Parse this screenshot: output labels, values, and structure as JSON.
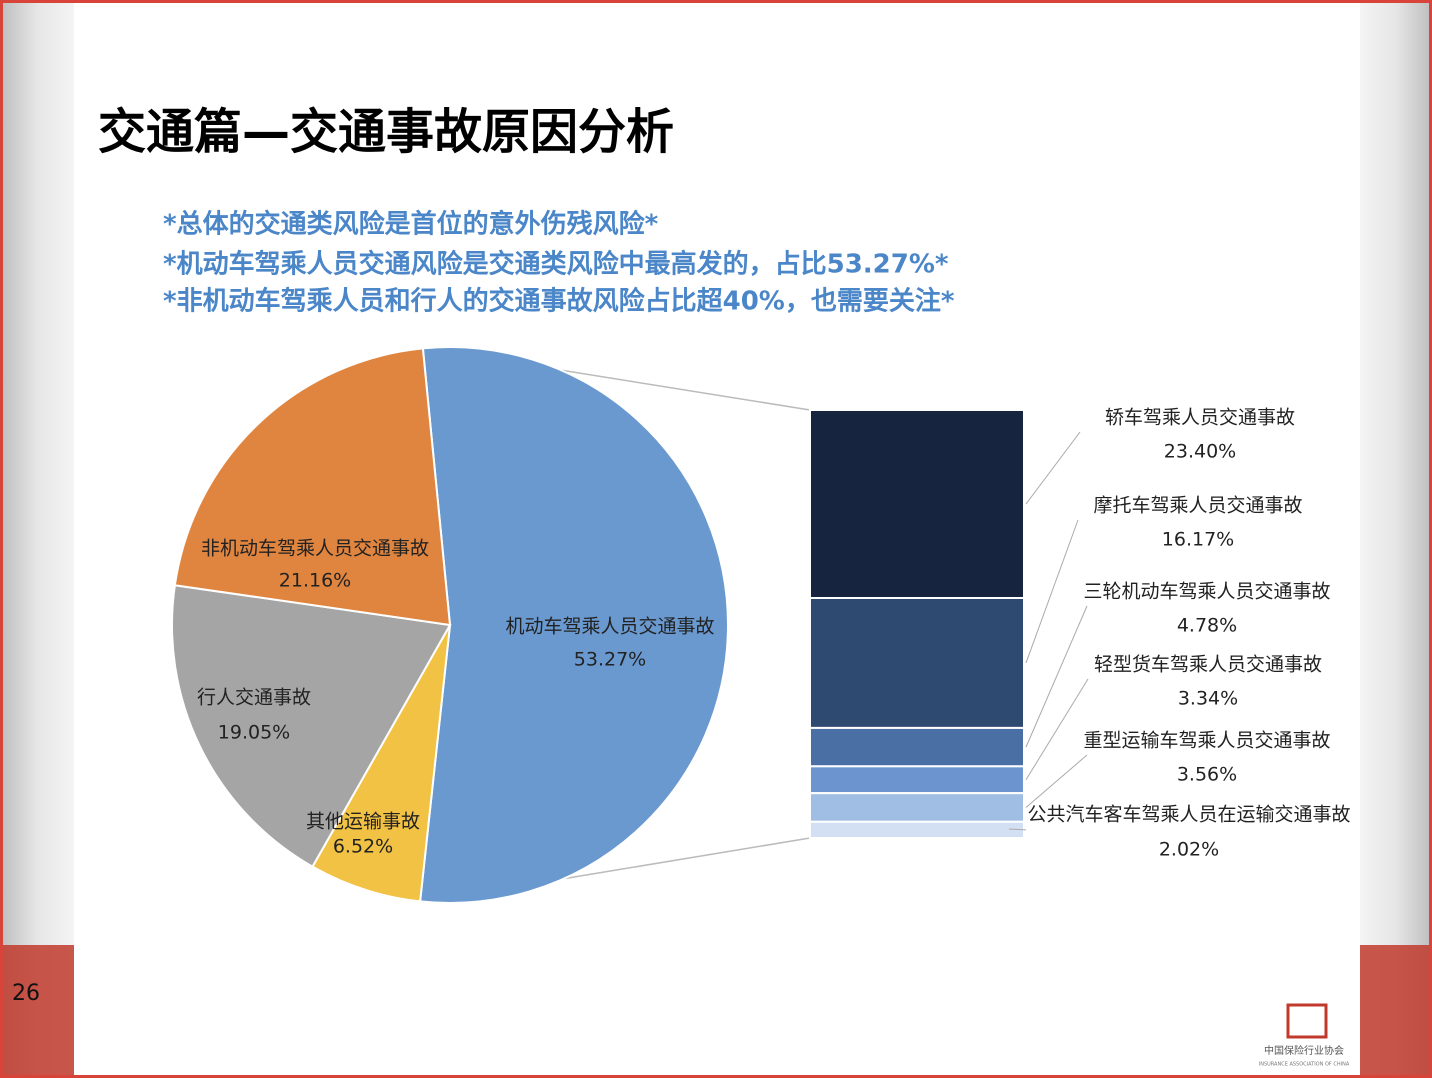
{
  "chart_data": {
    "type": "pie",
    "title": "交通篇—交通事故原因分析",
    "annotations": [
      "*总体的交通类风险是首位的意外伤残风险*",
      "*机动车驾乘人员交通风险是交通类风险中最高发的，占比53.27%*",
      "*非机动车驾乘人员和行人的交通事故风险占比超40%，也需要关注*"
    ],
    "categories": [
      "机动车驾乘人员交通事故",
      "其他运输事故",
      "行人交通事故",
      "非机动车驾乘人员交通事故"
    ],
    "values": [
      53.27,
      6.52,
      19.05,
      21.16
    ],
    "value_labels": [
      "53.27%",
      "6.52%",
      "19.05%",
      "21.16%"
    ],
    "colors": [
      "#6a99cf",
      "#f2c244",
      "#a5a5a5",
      "#e0853f"
    ],
    "breakdown": {
      "categories": [
        "轿车驾乘人员交通事故",
        "摩托车驾乘人员交通事故",
        "三轮机动车驾乘人员交通事故",
        "轻型货车驾乘人员交通事故",
        "重型运输车驾乘人员交通事故",
        "公共汽车客车驾乘人员在运输交通事故"
      ],
      "values": [
        23.4,
        16.17,
        4.78,
        3.34,
        3.56,
        2.02
      ],
      "value_labels": [
        "23.40%",
        "16.17%",
        "4.78%",
        "3.34%",
        "3.56%",
        "2.02%"
      ],
      "colors": [
        "#17243f",
        "#2f4a70",
        "#4a6fa5",
        "#6c94cf",
        "#a0bde3",
        "#d3e0f3"
      ]
    }
  },
  "page_number": "26",
  "logo": {
    "name": "中国保险行业协会",
    "subtitle": "INSURANCE ASSOCIATION OF CHINA"
  }
}
